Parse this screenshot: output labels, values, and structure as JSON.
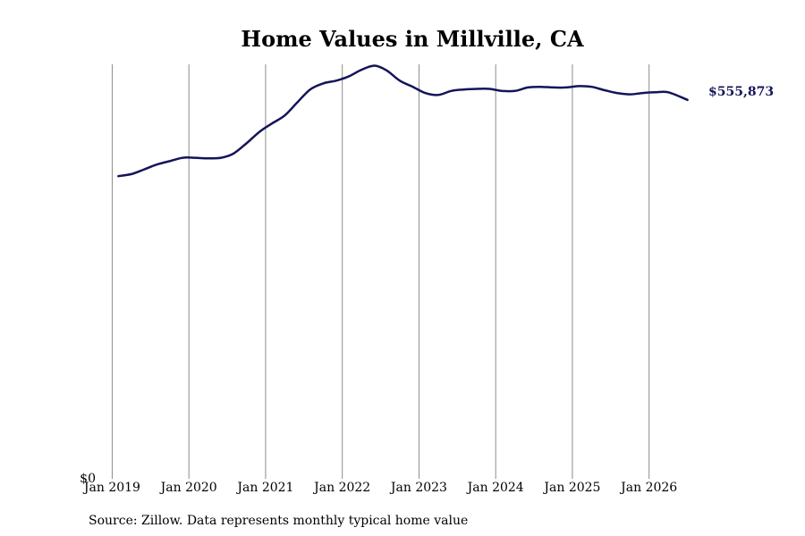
{
  "chart_data": {
    "type": "line",
    "title": "Home Values in Millville, CA",
    "xlabel": "",
    "ylabel": "",
    "source": "Source: Zillow. Data represents monthly typical home value",
    "y_tick_label": "$0",
    "end_label": "$555,873",
    "line_color": "#14145a",
    "grid": "vertical",
    "x_range": [
      2018.75,
      2026.75
    ],
    "ylim": [
      0,
      608000
    ],
    "x_ticks": [
      {
        "x": 2019,
        "label": "Jan 2019"
      },
      {
        "x": 2020,
        "label": "Jan 2020"
      },
      {
        "x": 2021,
        "label": "Jan 2021"
      },
      {
        "x": 2022,
        "label": "Jan 2022"
      },
      {
        "x": 2023,
        "label": "Jan 2023"
      },
      {
        "x": 2024,
        "label": "Jan 2024"
      },
      {
        "x": 2025,
        "label": "Jan 2025"
      },
      {
        "x": 2026,
        "label": "Jan 2026"
      }
    ],
    "series": [
      {
        "values": [
          [
            2019.08,
            444000
          ],
          [
            2019.25,
            447000
          ],
          [
            2019.42,
            454000
          ],
          [
            2019.58,
            461000
          ],
          [
            2019.75,
            466000
          ],
          [
            2019.92,
            471000
          ],
          [
            2020.08,
            471000
          ],
          [
            2020.25,
            470000
          ],
          [
            2020.42,
            471000
          ],
          [
            2020.58,
            477000
          ],
          [
            2020.75,
            492000
          ],
          [
            2020.92,
            509000
          ],
          [
            2021.08,
            521000
          ],
          [
            2021.25,
            533000
          ],
          [
            2021.42,
            553000
          ],
          [
            2021.58,
            571000
          ],
          [
            2021.75,
            580000
          ],
          [
            2021.92,
            584000
          ],
          [
            2022.08,
            590000
          ],
          [
            2022.25,
            600000
          ],
          [
            2022.42,
            606000
          ],
          [
            2022.58,
            599000
          ],
          [
            2022.75,
            584000
          ],
          [
            2022.92,
            575000
          ],
          [
            2023.08,
            566000
          ],
          [
            2023.25,
            563000
          ],
          [
            2023.42,
            569000
          ],
          [
            2023.58,
            571000
          ],
          [
            2023.75,
            572000
          ],
          [
            2023.92,
            572000
          ],
          [
            2024.08,
            569000
          ],
          [
            2024.25,
            569000
          ],
          [
            2024.42,
            574000
          ],
          [
            2024.58,
            575000
          ],
          [
            2024.75,
            574000
          ],
          [
            2024.92,
            574000
          ],
          [
            2025.08,
            576000
          ],
          [
            2025.25,
            575000
          ],
          [
            2025.42,
            570000
          ],
          [
            2025.58,
            566000
          ],
          [
            2025.75,
            564000
          ],
          [
            2025.92,
            566000
          ],
          [
            2026.08,
            567000
          ],
          [
            2026.25,
            567000
          ],
          [
            2026.5,
            555873
          ]
        ]
      }
    ]
  }
}
